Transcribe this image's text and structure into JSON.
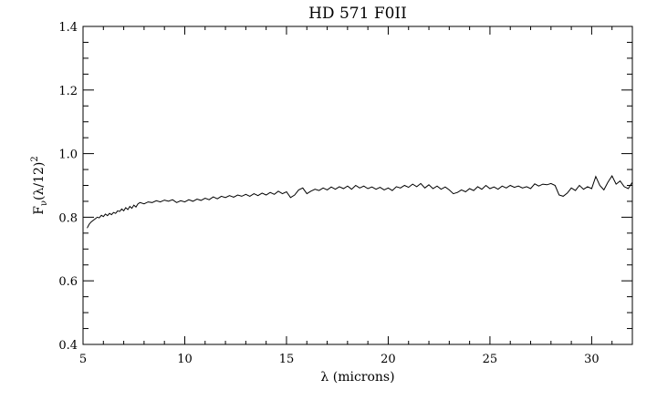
{
  "chart_data": {
    "type": "line",
    "title": "HD 571 F0II",
    "xlabel": "λ (microns)",
    "ylabel_main": "F",
    "ylabel_sub": "ν",
    "ylabel_rest": "(λ/12)",
    "ylabel_sup": "2",
    "xlim": [
      5,
      32
    ],
    "ylim": [
      0.4,
      1.4
    ],
    "xticks": [
      5,
      10,
      15,
      20,
      25,
      30
    ],
    "xtick_labels": [
      "5",
      "10",
      "15",
      "20",
      "25",
      "30"
    ],
    "yticks": [
      0.4,
      0.6,
      0.8,
      1.0,
      1.2,
      1.4
    ],
    "ytick_labels": [
      "0.4",
      "0.6",
      "0.8",
      "1.0",
      "1.2",
      "1.4"
    ],
    "x_minor_step": 1,
    "y_minor_step": 0.05,
    "grid": false,
    "legend": "none",
    "line_color": "#000000",
    "series": [
      {
        "x": [
          5.2,
          5.3,
          5.4,
          5.5,
          5.6,
          5.7,
          5.8,
          5.9,
          6.0,
          6.1,
          6.2,
          6.3,
          6.4,
          6.5,
          6.6,
          6.7,
          6.8,
          6.9,
          7.0,
          7.1,
          7.2,
          7.3,
          7.4,
          7.5,
          7.6,
          7.7,
          7.8,
          8.0,
          8.2,
          8.4,
          8.6,
          8.8,
          9.0,
          9.2,
          9.4,
          9.6,
          9.8,
          10.0,
          10.2,
          10.4,
          10.6,
          10.8,
          11.0,
          11.2,
          11.4,
          11.6,
          11.8,
          12.0,
          12.2,
          12.4,
          12.6,
          12.8,
          13.0,
          13.2,
          13.4,
          13.6,
          13.8,
          14.0,
          14.2,
          14.4,
          14.6,
          14.8,
          15.0,
          15.2,
          15.4,
          15.6,
          15.8,
          16.0,
          16.2,
          16.4,
          16.6,
          16.8,
          17.0,
          17.2,
          17.4,
          17.6,
          17.8,
          18.0,
          18.2,
          18.4,
          18.6,
          18.8,
          19.0,
          19.2,
          19.4,
          19.6,
          19.8,
          20.0,
          20.2,
          20.4,
          20.6,
          20.8,
          21.0,
          21.2,
          21.4,
          21.6,
          21.8,
          22.0,
          22.2,
          22.4,
          22.6,
          22.8,
          23.0,
          23.2,
          23.4,
          23.6,
          23.8,
          24.0,
          24.2,
          24.4,
          24.6,
          24.8,
          25.0,
          25.2,
          25.4,
          25.6,
          25.8,
          26.0,
          26.2,
          26.4,
          26.6,
          26.8,
          27.0,
          27.2,
          27.4,
          27.6,
          27.8,
          28.0,
          28.2,
          28.4,
          28.6,
          28.8,
          29.0,
          29.2,
          29.4,
          29.6,
          29.8,
          30.0,
          30.2,
          30.4,
          30.6,
          30.8,
          31.0,
          31.2,
          31.4,
          31.6,
          31.8,
          32.0
        ],
        "y": [
          0.766,
          0.778,
          0.785,
          0.79,
          0.795,
          0.8,
          0.798,
          0.806,
          0.802,
          0.81,
          0.805,
          0.812,
          0.808,
          0.815,
          0.812,
          0.82,
          0.818,
          0.826,
          0.82,
          0.83,
          0.824,
          0.834,
          0.828,
          0.838,
          0.832,
          0.842,
          0.846,
          0.842,
          0.848,
          0.846,
          0.852,
          0.848,
          0.854,
          0.85,
          0.855,
          0.846,
          0.852,
          0.848,
          0.855,
          0.85,
          0.857,
          0.853,
          0.86,
          0.855,
          0.864,
          0.858,
          0.866,
          0.862,
          0.868,
          0.863,
          0.87,
          0.866,
          0.872,
          0.866,
          0.874,
          0.868,
          0.876,
          0.87,
          0.878,
          0.872,
          0.882,
          0.874,
          0.88,
          0.862,
          0.87,
          0.886,
          0.892,
          0.874,
          0.882,
          0.888,
          0.884,
          0.892,
          0.886,
          0.895,
          0.888,
          0.896,
          0.89,
          0.898,
          0.888,
          0.9,
          0.892,
          0.898,
          0.89,
          0.895,
          0.888,
          0.894,
          0.886,
          0.892,
          0.884,
          0.896,
          0.892,
          0.9,
          0.894,
          0.904,
          0.896,
          0.906,
          0.892,
          0.902,
          0.89,
          0.898,
          0.888,
          0.895,
          0.886,
          0.874,
          0.878,
          0.886,
          0.88,
          0.89,
          0.884,
          0.896,
          0.888,
          0.9,
          0.89,
          0.895,
          0.888,
          0.898,
          0.892,
          0.9,
          0.894,
          0.898,
          0.892,
          0.896,
          0.89,
          0.905,
          0.898,
          0.904,
          0.902,
          0.906,
          0.9,
          0.87,
          0.866,
          0.876,
          0.892,
          0.884,
          0.9,
          0.888,
          0.896,
          0.89,
          0.928,
          0.9,
          0.886,
          0.91,
          0.93,
          0.904,
          0.914,
          0.896,
          0.89,
          0.91
        ]
      }
    ]
  }
}
